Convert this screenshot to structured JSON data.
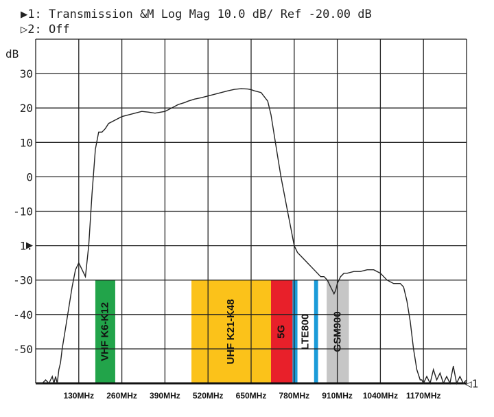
{
  "header": {
    "trace1": "▶1: Transmission  &M Log Mag  10.0 dB/ Ref -20.00 dB",
    "trace2": "▷2: Off"
  },
  "chart_data": {
    "type": "line",
    "ylabel": "dB",
    "ylim": [
      -60,
      40
    ],
    "xlim": [
      0,
      1300
    ],
    "grid": true,
    "y_ticks": [
      "30",
      "20",
      "10",
      "0",
      "-10",
      "1:",
      "-30",
      "-40",
      "-50"
    ],
    "y_tick_values": [
      30,
      20,
      10,
      0,
      -10,
      -20,
      -30,
      -40,
      -50
    ],
    "ref_marker": "1: ▶",
    "end_marker": "◁1",
    "x_ticks": [
      "130MHz",
      "260MHz",
      "390MHz",
      "520MHz",
      "650MHz",
      "780MHz",
      "910MHz",
      "1040MHz",
      "1170MHz"
    ],
    "x_tick_values": [
      130,
      260,
      390,
      520,
      650,
      780,
      910,
      1040,
      1170
    ],
    "series": [
      {
        "x": [
          0,
          10,
          20,
          30,
          40,
          50,
          55,
          60,
          65,
          70,
          75,
          80,
          90,
          100,
          110,
          120,
          130,
          150,
          160,
          170,
          180,
          190,
          200,
          210,
          220,
          240,
          260,
          280,
          300,
          320,
          340,
          360,
          390,
          410,
          420,
          430,
          440,
          450,
          460,
          470,
          480,
          500,
          520,
          540,
          560,
          580,
          600,
          620,
          640,
          650,
          660,
          680,
          700,
          710,
          720,
          730,
          740,
          750,
          760,
          770,
          780,
          790,
          800,
          810,
          820,
          830,
          840,
          850,
          860,
          870,
          880,
          890,
          895,
          900,
          905,
          910,
          915,
          920,
          930,
          940,
          960,
          980,
          1000,
          1020,
          1040,
          1060,
          1080,
          1100,
          1110,
          1120,
          1130,
          1140,
          1150,
          1160,
          1165,
          1170,
          1180,
          1190,
          1200,
          1210,
          1220,
          1230,
          1240,
          1250,
          1260,
          1270,
          1280,
          1290,
          1300
        ],
        "y": [
          -60,
          -60,
          -60,
          -59,
          -60,
          -58,
          -60,
          -58,
          -60,
          -56,
          -54,
          -50,
          -44,
          -38,
          -32,
          -27,
          -25,
          -29,
          -20,
          -5,
          8,
          13,
          13,
          14,
          15.5,
          16.5,
          17.5,
          18,
          18.5,
          19,
          18.8,
          18.5,
          19,
          20,
          20.5,
          21,
          21.3,
          21.6,
          22,
          22.3,
          22.6,
          23,
          23.5,
          24,
          24.5,
          25,
          25.4,
          25.6,
          25.5,
          25.3,
          25,
          24.5,
          22,
          18,
          12,
          6,
          0,
          -5,
          -10,
          -15,
          -20,
          -22,
          -23,
          -24,
          -25,
          -26,
          -27,
          -28,
          -29,
          -29,
          -30,
          -32,
          -33,
          -34,
          -33,
          -31,
          -30,
          -29,
          -28,
          -28,
          -27.5,
          -27.5,
          -27,
          -27,
          -28,
          -30,
          -31,
          -31,
          -32,
          -36,
          -42,
          -50,
          -56,
          -59,
          -59,
          -60,
          -58,
          -60,
          -56,
          -59,
          -57,
          -60,
          -58,
          -60,
          -55,
          -60,
          -58,
          -60,
          -59
        ]
      }
    ],
    "bands": [
      {
        "label": "VHF K6-K12",
        "x0": 180,
        "x1": 240,
        "y_top": -30,
        "color": "#22a44a",
        "text": "dark"
      },
      {
        "label": "UHF K21-K48",
        "x0": 470,
        "x1": 710,
        "y_top": -30,
        "color": "#fbc21a",
        "text": "dark"
      },
      {
        "label": "5G",
        "x0": 710,
        "x1": 775,
        "y_top": -30,
        "color": "#e8202a",
        "text": "dark"
      },
      {
        "label": "",
        "x0": 775,
        "x1": 790,
        "y_top": -30,
        "color": "#1b9bd8",
        "text": "dark"
      },
      {
        "label": "LTE800",
        "x0": 790,
        "x1": 840,
        "y_top": -30,
        "color": "#ffffff",
        "text": "dark"
      },
      {
        "label": "",
        "x0": 840,
        "x1": 852,
        "y_top": -30,
        "color": "#1b9bd8",
        "text": "dark"
      },
      {
        "label": "GSM900",
        "x0": 878,
        "x1": 945,
        "y_top": -30,
        "color": "#c6c6c6",
        "text": "dark"
      }
    ]
  }
}
